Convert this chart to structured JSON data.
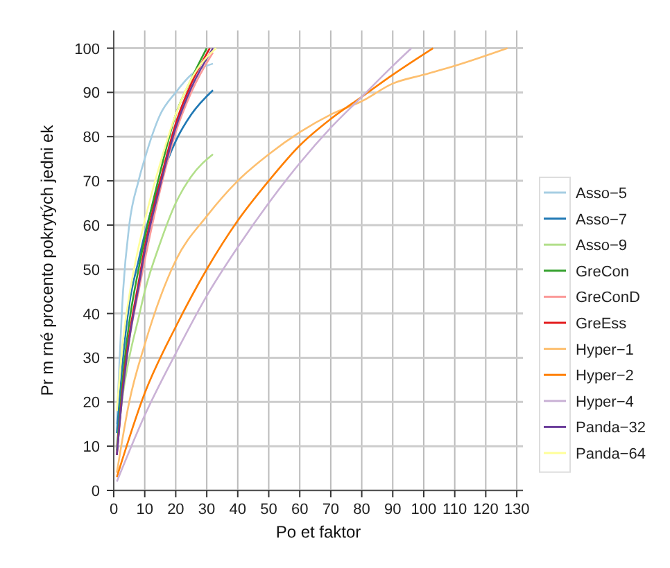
{
  "chart_data": {
    "type": "line",
    "xlabel": "Po et faktor",
    "ylabel": "Pr m rné procento pokrytých jedni ek",
    "xlim": [
      0,
      132
    ],
    "ylim": [
      0,
      104
    ],
    "xticks": [
      0,
      10,
      20,
      30,
      40,
      50,
      60,
      70,
      80,
      90,
      100,
      110,
      120,
      130
    ],
    "yticks": [
      0,
      10,
      20,
      30,
      40,
      50,
      60,
      70,
      80,
      90,
      100
    ],
    "grid": true,
    "legend": "right",
    "marker": "none",
    "line_style": "solid",
    "series": [
      {
        "name": "Asso−5",
        "color": "#a6cee3",
        "x": [
          1,
          3,
          5,
          8,
          10,
          15,
          20,
          25,
          32
        ],
        "values": [
          15,
          45,
          60,
          70,
          75,
          85,
          90,
          94,
          96.5
        ]
      },
      {
        "name": "Asso−7",
        "color": "#1f78b4",
        "x": [
          1,
          3,
          5,
          8,
          10,
          15,
          20,
          25,
          32
        ],
        "values": [
          13,
          30,
          42,
          52,
          58,
          70,
          79,
          85,
          90.5
        ]
      },
      {
        "name": "Asso−9",
        "color": "#b2df8a",
        "x": [
          1,
          3,
          5,
          8,
          10,
          15,
          20,
          25,
          32
        ],
        "values": [
          10,
          22,
          30,
          39,
          45,
          56,
          65,
          71,
          76
        ]
      },
      {
        "name": "GreCon",
        "color": "#33a02c",
        "x": [
          1,
          3,
          5,
          8,
          10,
          15,
          20,
          25,
          30
        ],
        "values": [
          9,
          26,
          38,
          50,
          57,
          72,
          85,
          93,
          100
        ]
      },
      {
        "name": "GreConD",
        "color": "#fb9a99",
        "x": [
          1,
          3,
          5,
          8,
          10,
          15,
          20,
          25,
          32
        ],
        "values": [
          8,
          23,
          34,
          45,
          52,
          68,
          81,
          90,
          99
        ]
      },
      {
        "name": "GreEss",
        "color": "#e31a1c",
        "x": [
          1,
          3,
          5,
          8,
          10,
          15,
          20,
          25,
          31
        ],
        "values": [
          8,
          24,
          35,
          47,
          55,
          70,
          83,
          92,
          100
        ]
      },
      {
        "name": "Hyper−1",
        "color": "#fdbf6f",
        "x": [
          1,
          5,
          10,
          20,
          30,
          40,
          50,
          60,
          70,
          80,
          90,
          100,
          110,
          127
        ],
        "values": [
          4,
          20,
          33,
          52,
          62,
          70,
          76,
          81,
          85,
          88,
          92,
          94,
          96,
          100
        ]
      },
      {
        "name": "Hyper−2",
        "color": "#ff7f00",
        "x": [
          1,
          10,
          20,
          30,
          40,
          50,
          60,
          70,
          80,
          90,
          103
        ],
        "values": [
          3,
          22,
          37,
          50,
          61,
          70,
          78,
          84,
          89,
          94,
          100
        ]
      },
      {
        "name": "Hyper−4",
        "color": "#cab2d6",
        "x": [
          1,
          10,
          20,
          30,
          40,
          50,
          60,
          70,
          80,
          90,
          96
        ],
        "values": [
          2,
          17,
          31,
          44,
          55,
          65,
          74,
          82,
          89,
          96,
          100
        ]
      },
      {
        "name": "Panda−32",
        "color": "#6a3d9a",
        "x": [
          1,
          3,
          5,
          8,
          10,
          15,
          20,
          25,
          32
        ],
        "values": [
          8,
          23,
          34,
          46,
          54,
          69,
          82,
          91,
          100
        ]
      },
      {
        "name": "Panda−64",
        "color": "#ffff99",
        "x": [
          1,
          3,
          5,
          8,
          10,
          15,
          20,
          25,
          33
        ],
        "values": [
          18,
          34,
          44,
          55,
          61,
          74,
          85,
          93,
          100
        ]
      }
    ]
  }
}
